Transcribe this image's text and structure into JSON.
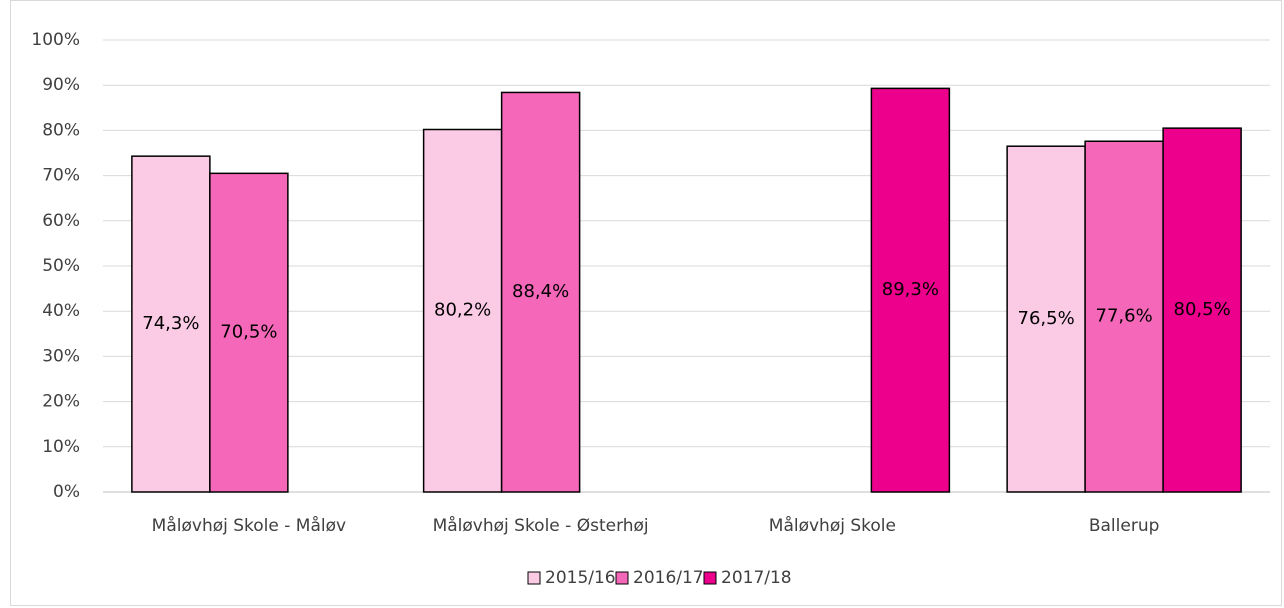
{
  "chart_data": {
    "type": "bar",
    "categories": [
      "Måløvhøj Skole - Måløv",
      "Måløvhøj Skole - Østerhøj",
      "Måløvhøj Skole",
      "Ballerup"
    ],
    "series": [
      {
        "name": "2015/16",
        "color": "#fbcbe6",
        "values": [
          74.3,
          80.2,
          null,
          76.5
        ],
        "value_labels": [
          "74,3%",
          "80,2%",
          null,
          "76,5%"
        ]
      },
      {
        "name": "2016/17",
        "color": "#f467b9",
        "values": [
          70.5,
          88.4,
          null,
          77.6
        ],
        "value_labels": [
          "70,5%",
          "88,4%",
          null,
          "77,6%"
        ]
      },
      {
        "name": "2017/18",
        "color": "#ec008c",
        "values": [
          null,
          null,
          89.3,
          80.5
        ],
        "value_labels": [
          null,
          null,
          "89,3%",
          "80,5%"
        ]
      }
    ],
    "ylim": [
      0,
      100
    ],
    "yticks": [
      {
        "value": 0,
        "label": "0%"
      },
      {
        "value": 10,
        "label": "10%"
      },
      {
        "value": 20,
        "label": "20%"
      },
      {
        "value": 30,
        "label": "30%"
      },
      {
        "value": 40,
        "label": "40%"
      },
      {
        "value": 50,
        "label": "50%"
      },
      {
        "value": 60,
        "label": "60%"
      },
      {
        "value": 70,
        "label": "70%"
      },
      {
        "value": 80,
        "label": "80%"
      },
      {
        "value": 90,
        "label": "90%"
      },
      {
        "value": 100,
        "label": "100%"
      }
    ],
    "grid": true,
    "legend": "bottom"
  }
}
